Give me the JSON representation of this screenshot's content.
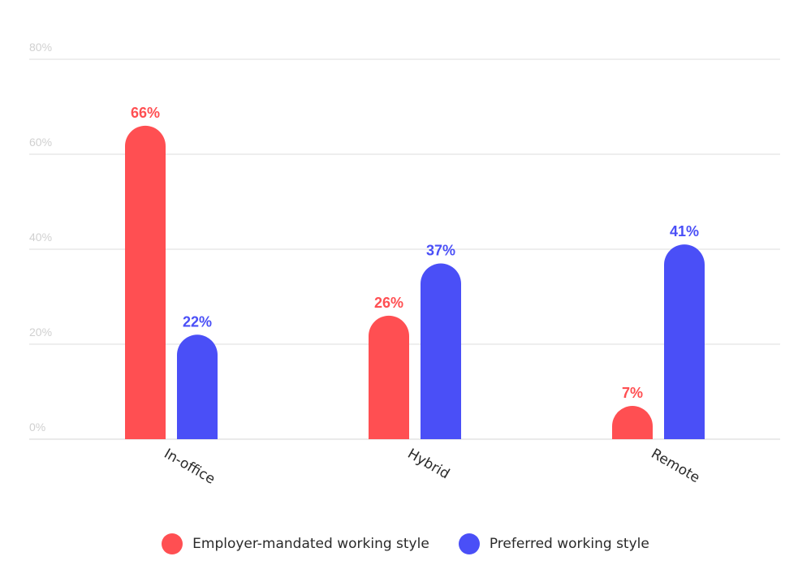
{
  "chart_data": {
    "type": "bar",
    "title": "",
    "xlabel": "",
    "ylabel": "",
    "categories": [
      "In-office",
      "Hybrid",
      "Remote"
    ],
    "series": [
      {
        "name": "Employer-mandated working style",
        "values": [
          66,
          26,
          7
        ],
        "labels": [
          "66%",
          "26%",
          "7%"
        ],
        "color": "#ff4f52"
      },
      {
        "name": "Preferred working style",
        "values": [
          22,
          37,
          41
        ],
        "labels": [
          "22%",
          "37%",
          "41%"
        ],
        "color": "#4a4ff7"
      }
    ],
    "ylim": [
      0,
      80
    ],
    "yticks": [
      0,
      20,
      40,
      60,
      80
    ],
    "ytick_labels": [
      "0%",
      "20%",
      "40%",
      "60%",
      "80%"
    ],
    "grid": true,
    "legend_position": "bottom-center",
    "bar_style": "rounded-top",
    "x_tick_rotation": "diagonal"
  }
}
